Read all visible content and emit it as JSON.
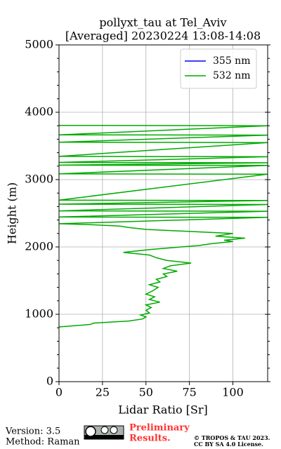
{
  "chart_data": {
    "type": "line",
    "title": [
      "pollyxt_tau at Tel_Aviv",
      "[Averaged] 20230224 13:08-14:08"
    ],
    "xlabel": "Lidar Ratio [Sr]",
    "ylabel": "Height (m)",
    "xlim": [
      0,
      120
    ],
    "xticks": [
      0,
      25,
      50,
      75,
      100
    ],
    "ylim": [
      0,
      5000
    ],
    "yticks": [
      0,
      1000,
      2000,
      3000,
      4000,
      5000
    ],
    "yminorticks": [
      200,
      400,
      600,
      800,
      1200,
      1400,
      1600,
      1800,
      2200,
      2400,
      2600,
      2800,
      3200,
      3400,
      3600,
      3800,
      4200,
      4400,
      4600,
      4800
    ],
    "grid": true,
    "legend": "upper right",
    "series": [
      {
        "name": "355 nm",
        "color": "#0000ff",
        "values": [],
        "heights": []
      },
      {
        "name": "532 nm",
        "color": "#00aa00",
        "values": [
          0,
          18,
          20,
          40,
          48,
          50,
          47,
          52,
          50,
          53,
          50,
          58,
          52,
          55,
          50,
          54,
          57,
          52,
          58,
          56,
          62,
          60,
          68,
          60,
          64,
          76,
          62,
          56,
          52,
          37,
          52,
          70,
          80,
          88,
          100,
          95,
          107,
          90,
          100,
          75,
          50,
          40,
          35,
          18,
          0,
          120,
          0,
          120,
          0,
          120,
          0,
          120,
          0,
          120,
          0,
          120,
          0,
          120,
          0,
          120,
          0,
          120,
          0,
          120,
          0,
          120,
          0
        ],
        "heights": [
          812,
          850,
          870,
          900,
          930,
          960,
          990,
          1020,
          1060,
          1100,
          1140,
          1180,
          1220,
          1260,
          1300,
          1350,
          1400,
          1440,
          1480,
          1520,
          1560,
          1600,
          1640,
          1680,
          1720,
          1760,
          1800,
          1840,
          1880,
          1920,
          1960,
          2000,
          2020,
          2050,
          2080,
          2100,
          2130,
          2160,
          2200,
          2230,
          2260,
          2290,
          2310,
          2330,
          2345,
          2440,
          2445,
          2530,
          2535,
          2630,
          2635,
          2690,
          2695,
          3080,
          3085,
          3210,
          3215,
          3250,
          3255,
          3340,
          3345,
          3550,
          3555,
          3660,
          3665,
          3800,
          3805
        ]
      }
    ]
  },
  "footer": {
    "version": "Version: 3.5",
    "method": "Method: Raman",
    "notice": [
      "Preliminary",
      "Results."
    ],
    "license": [
      "© TROPOS & TAU 2023.",
      "CC BY SA 4.0 License."
    ]
  }
}
